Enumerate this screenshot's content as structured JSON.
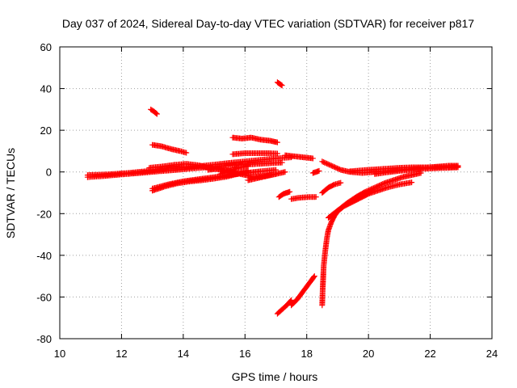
{
  "chart_data": {
    "type": "scatter",
    "title": "Day 037 of 2024, Sidereal Day-to-day VTEC variation (SDTVAR) for receiver p817",
    "xlabel": "GPS time / hours",
    "ylabel": "SDTVAR / TECUs",
    "xlim": [
      10,
      24
    ],
    "ylim": [
      -80,
      60
    ],
    "xticks": [
      "10",
      "12",
      "14",
      "16",
      "18",
      "20",
      "22",
      "24"
    ],
    "yticks": [
      "60",
      "40",
      "20",
      "0",
      "-20",
      "-40",
      "-60",
      "-80"
    ],
    "grid": true,
    "marker": "plus",
    "marker_color": "#ff0000",
    "series": [
      {
        "x": [
          10.9,
          11.5,
          12.2,
          12.9,
          13.6,
          14.3,
          15.0,
          15.6,
          16.3,
          17.0,
          17.5
        ],
        "y": [
          -1.5,
          -1.2,
          -0.5,
          0.5,
          1.5,
          2.5,
          3.5,
          4.5,
          5.5,
          6.5,
          7.0
        ]
      },
      {
        "x": [
          10.9,
          11.4,
          12.0,
          12.6,
          13.2,
          13.8,
          14.4,
          15.0,
          15.5,
          16.0,
          16.6,
          17.2
        ],
        "y": [
          -2.5,
          -2.0,
          -1.2,
          -0.5,
          0.3,
          1.0,
          1.8,
          2.5,
          3.0,
          3.5,
          4.0,
          4.5
        ]
      },
      {
        "x": [
          12.9,
          13.3,
          13.7,
          14.1,
          14.5,
          14.9,
          15.3
        ],
        "y": [
          2.0,
          2.6,
          3.4,
          3.9,
          3.2,
          1.8,
          0.8
        ]
      },
      {
        "x": [
          13.0,
          13.3,
          13.6,
          13.9,
          14.1
        ],
        "y": [
          13.0,
          12.3,
          11.0,
          10.0,
          9.2
        ]
      },
      {
        "x": [
          12.95,
          13.05,
          13.15
        ],
        "y": [
          30.0,
          29.0,
          27.8
        ]
      },
      {
        "x": [
          13.0,
          13.4,
          13.8,
          14.2,
          14.6,
          15.0,
          15.4,
          15.8,
          16.1
        ],
        "y": [
          -9.0,
          -7.0,
          -5.5,
          -4.6,
          -4.0,
          -3.2,
          -2.3,
          -0.8,
          0.5
        ]
      },
      {
        "x": [
          13.0,
          13.5,
          14.0,
          14.5,
          15.0,
          15.5,
          16.0,
          16.5,
          17.0
        ],
        "y": [
          -8.0,
          -6.0,
          -4.5,
          -3.5,
          -2.5,
          -1.5,
          -0.5,
          0.3,
          1.0
        ]
      },
      {
        "x": [
          14.8,
          15.1,
          15.4,
          15.7,
          16.0,
          16.3,
          16.6,
          17.0
        ],
        "y": [
          1.0,
          1.5,
          1.0,
          -0.5,
          -1.5,
          -2.5,
          -2.0,
          -1.0
        ]
      },
      {
        "x": [
          15.2,
          15.5,
          15.8,
          16.1
        ],
        "y": [
          -1.0,
          0.5,
          2.0,
          3.0
        ]
      },
      {
        "x": [
          15.6,
          15.9,
          16.2,
          16.5,
          16.8,
          17.05
        ],
        "y": [
          16.5,
          16.0,
          16.5,
          15.5,
          15.0,
          14.2
        ]
      },
      {
        "x": [
          15.6,
          16.0,
          16.4,
          16.8,
          17.05
        ],
        "y": [
          8.5,
          9.0,
          9.0,
          9.0,
          8.8
        ]
      },
      {
        "x": [
          16.1,
          16.4,
          16.7,
          17.0,
          17.3
        ],
        "y": [
          -4.0,
          -3.0,
          -2.0,
          -1.0,
          0.0
        ]
      },
      {
        "x": [
          17.05,
          17.1,
          17.15,
          17.2
        ],
        "y": [
          43.0,
          42.5,
          42.0,
          41.5
        ]
      },
      {
        "x": [
          17.1,
          17.25,
          17.45
        ],
        "y": [
          -12.0,
          -10.5,
          -9.5
        ]
      },
      {
        "x": [
          17.5,
          17.7,
          17.9,
          18.1,
          18.3
        ],
        "y": [
          -13.0,
          -12.5,
          -12.2,
          -12.0,
          -12.0
        ]
      },
      {
        "x": [
          17.3,
          17.6,
          17.9,
          18.2
        ],
        "y": [
          8.0,
          7.5,
          7.0,
          6.5
        ]
      },
      {
        "x": [
          17.05,
          17.2,
          17.35,
          17.5
        ],
        "y": [
          -68.0,
          -66.0,
          -64.0,
          -61.5
        ]
      },
      {
        "x": [
          17.5,
          17.7,
          17.9,
          18.1,
          18.25
        ],
        "y": [
          -64.0,
          -61.0,
          -57.0,
          -53.0,
          -50.0
        ]
      },
      {
        "x": [
          18.5,
          18.52,
          18.55,
          18.6,
          18.65,
          18.7,
          18.8,
          18.9,
          19.0,
          19.2,
          19.4,
          19.6,
          19.8,
          20.0,
          20.3,
          20.6,
          21.0,
          21.4
        ],
        "y": [
          -64.0,
          -55.0,
          -45.0,
          -38.0,
          -32.0,
          -28.0,
          -24.0,
          -21.0,
          -19.0,
          -16.5,
          -15.0,
          -13.5,
          -12.0,
          -10.5,
          -9.0,
          -7.5,
          -6.0,
          -5.0
        ]
      },
      {
        "x": [
          18.7,
          19.0,
          19.3,
          19.6,
          19.9,
          20.2,
          20.5,
          20.8,
          21.1,
          21.4,
          21.7
        ],
        "y": [
          -22.0,
          -18.5,
          -15.0,
          -12.0,
          -9.5,
          -7.5,
          -5.5,
          -4.0,
          -2.5,
          -1.5,
          -0.5
        ]
      },
      {
        "x": [
          18.5,
          18.7,
          18.9,
          19.1
        ],
        "y": [
          -10.0,
          -7.5,
          -6.0,
          -5.2
        ]
      },
      {
        "x": [
          18.5,
          18.8,
          19.1,
          19.4,
          19.8,
          20.2,
          20.6,
          21.0,
          21.4,
          21.8,
          22.2,
          22.6,
          22.9
        ],
        "y": [
          5.0,
          3.0,
          1.0,
          0.0,
          -0.5,
          0.0,
          0.5,
          1.0,
          1.5,
          2.0,
          2.5,
          3.0,
          3.0
        ]
      },
      {
        "x": [
          19.4,
          19.8,
          20.2,
          20.6,
          21.0,
          21.4,
          21.8,
          22.2,
          22.6,
          22.9
        ],
        "y": [
          0.3,
          0.8,
          1.2,
          1.6,
          2.0,
          2.2,
          2.2,
          2.3,
          2.4,
          2.5
        ]
      },
      {
        "x": [
          20.2,
          20.6,
          21.0,
          21.4,
          21.8,
          22.2,
          22.6,
          22.9
        ],
        "y": [
          -1.0,
          -0.2,
          0.5,
          1.0,
          1.5,
          1.8,
          2.0,
          2.2
        ]
      },
      {
        "x": [
          18.2,
          18.4
        ],
        "y": [
          -0.5,
          0.5
        ]
      }
    ]
  }
}
